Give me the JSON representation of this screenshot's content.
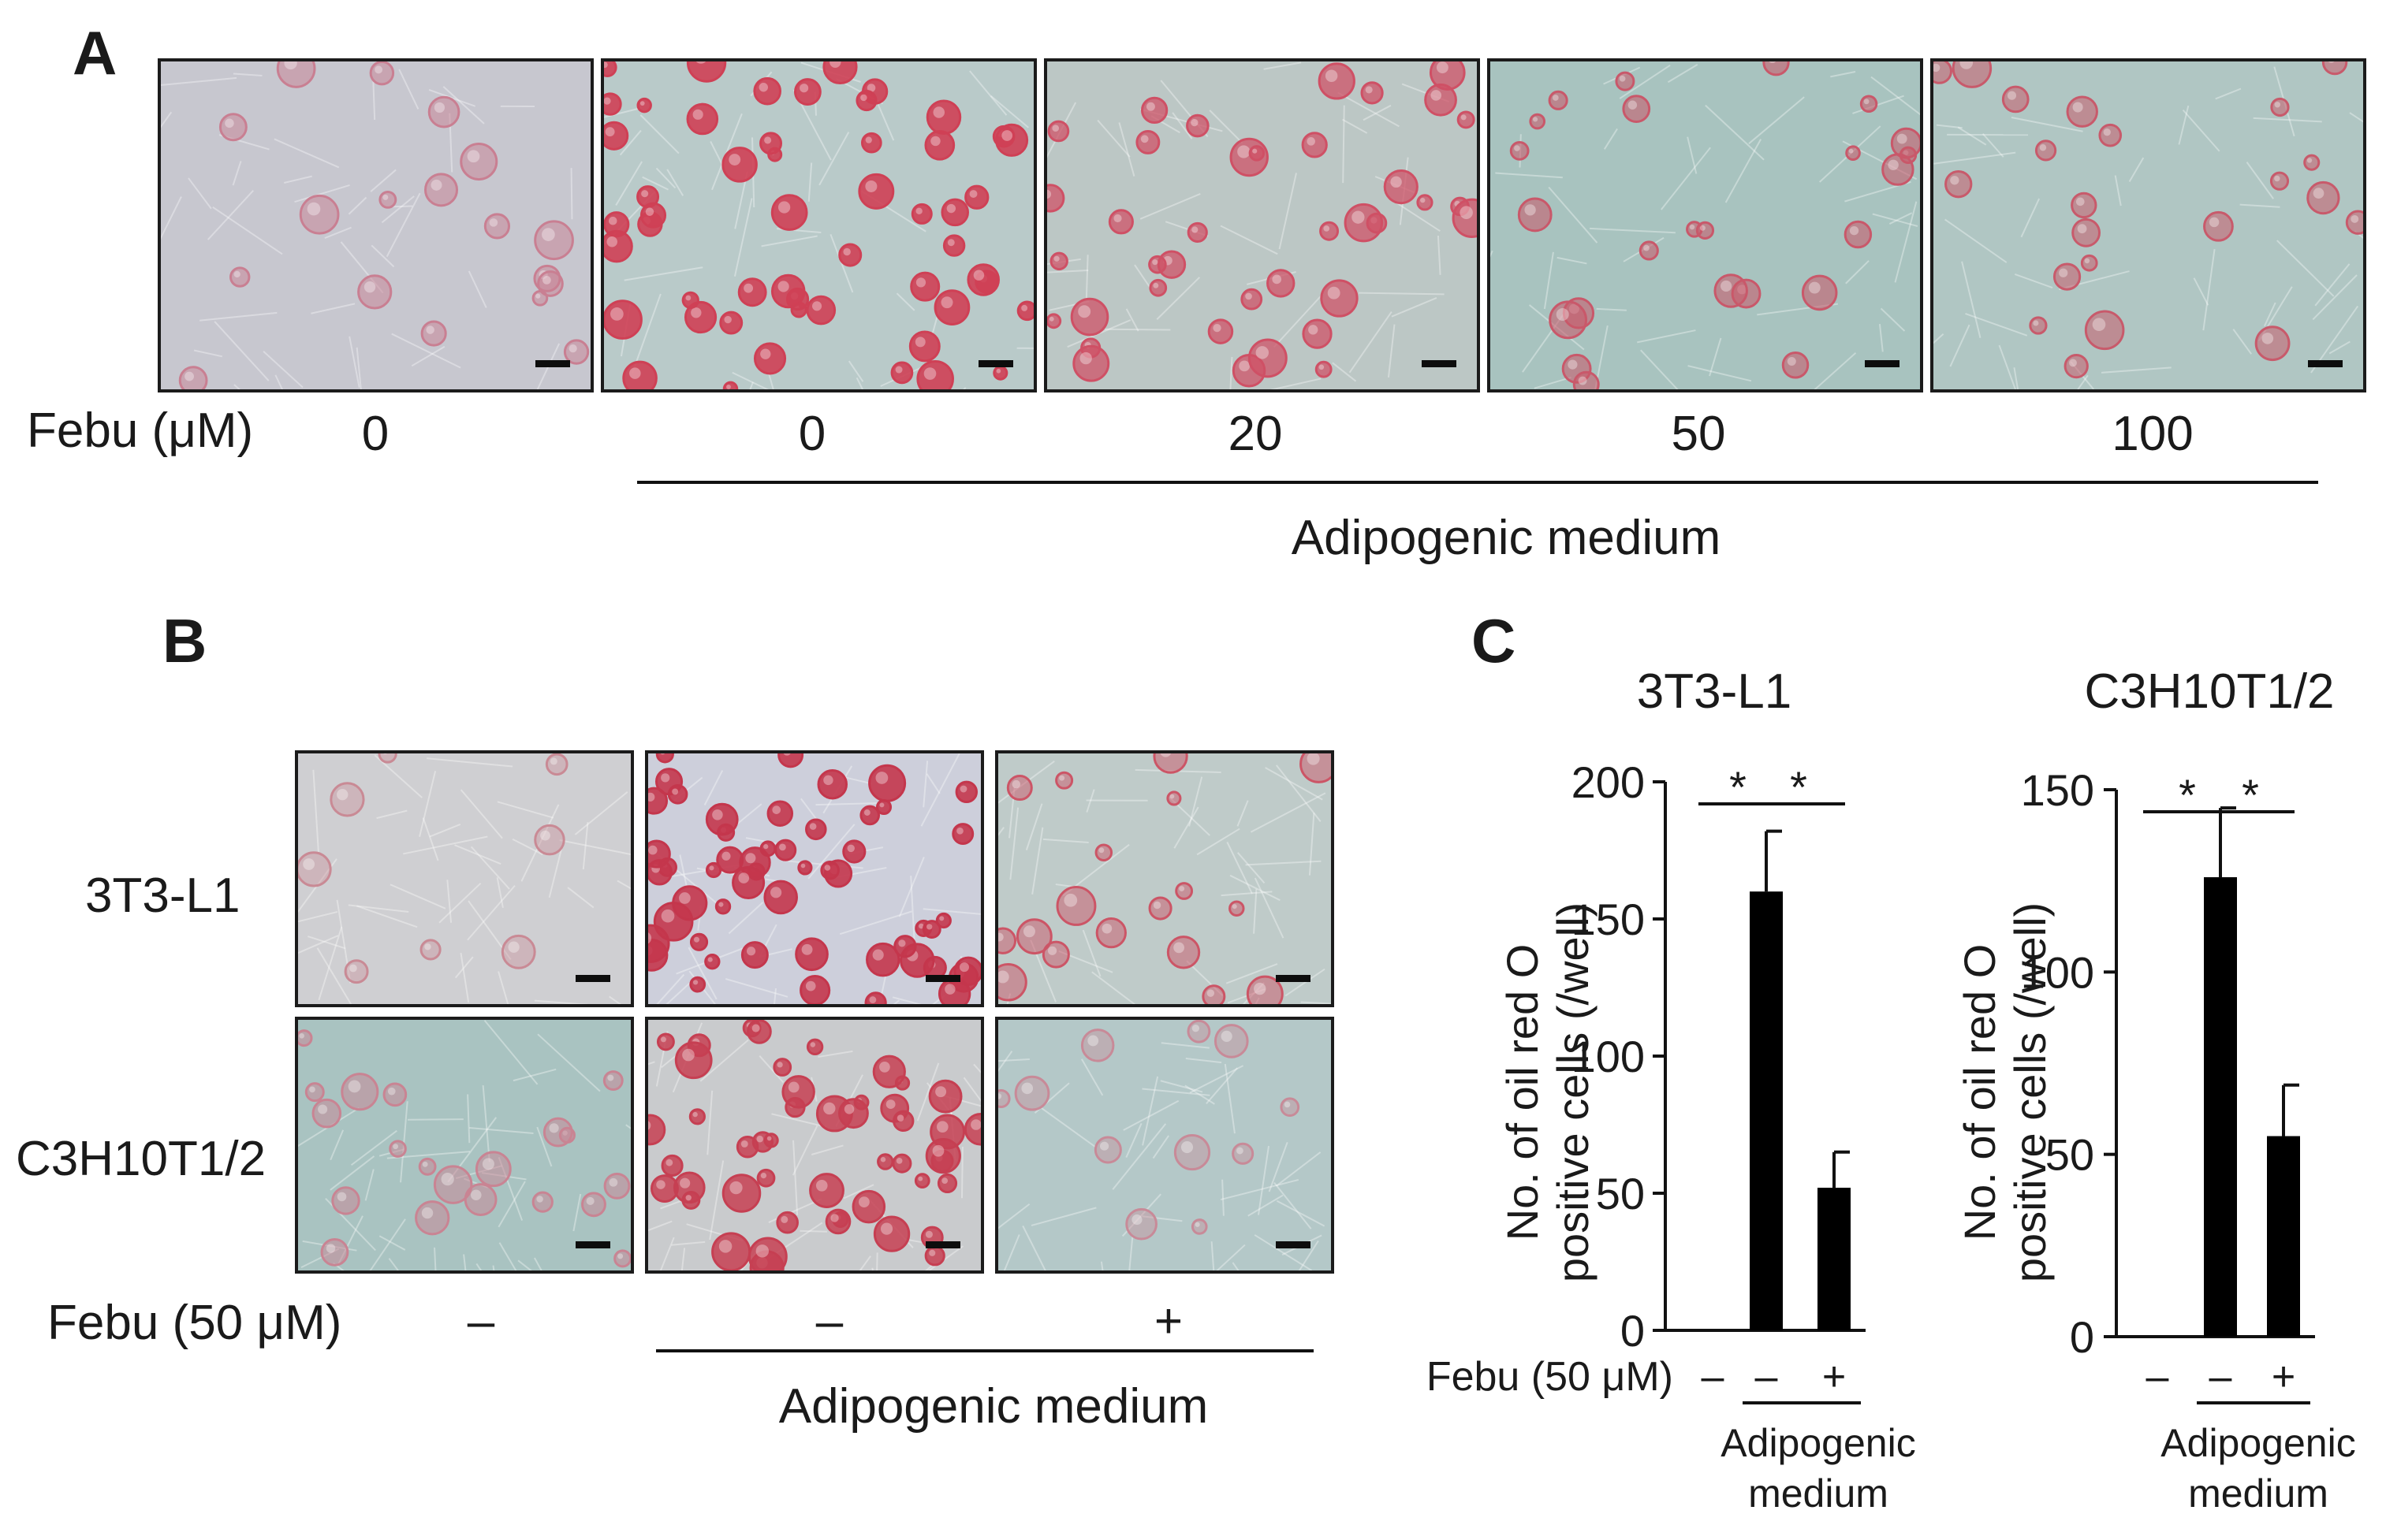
{
  "panel_a": {
    "letter": "A",
    "row_label": "Febu (μM)",
    "doses": [
      "0",
      "0",
      "20",
      "50",
      "100"
    ],
    "medium_label": "Adipogenic medium",
    "images": [
      {
        "bg": "#c7c7cf",
        "stain": "#c97f92",
        "density": 0.25
      },
      {
        "bg": "#b9cac9",
        "stain": "#cf4055",
        "density": 1.0
      },
      {
        "bg": "#bcc7c5",
        "stain": "#cf5065",
        "density": 0.7
      },
      {
        "bg": "#a8c3bf",
        "stain": "#c9586a",
        "density": 0.4
      },
      {
        "bg": "#b0c6c3",
        "stain": "#c85a6b",
        "density": 0.35
      }
    ]
  },
  "panel_b": {
    "letter": "B",
    "row_labels": [
      "3T3-L1",
      "C3H10T1/2"
    ],
    "treatment_label": "Febu (50 μM)",
    "treatments": [
      "–",
      "–",
      "+"
    ],
    "medium_label": "Adipogenic medium",
    "images": [
      [
        {
          "bg": "#cfcfd2",
          "stain": "#c98a95",
          "density": 0.05
        },
        {
          "bg": "#cdcfdb",
          "stain": "#c4364c",
          "density": 1.0
        },
        {
          "bg": "#bfcbc9",
          "stain": "#cc5566",
          "density": 0.25
        }
      ],
      [
        {
          "bg": "#a9c3c1",
          "stain": "#c98493",
          "density": 0.3
        },
        {
          "bg": "#c9cbcd",
          "stain": "#c63f52",
          "density": 0.9
        },
        {
          "bg": "#b4c8c8",
          "stain": "#c88a98",
          "density": 0.1
        }
      ]
    ]
  },
  "panel_c": {
    "letter": "C",
    "ylabel_line1": "No. of oil red O",
    "ylabel_line2": "positive cells (/well)",
    "treatment_label": "Febu (50 μM)",
    "treatments": [
      "–",
      "–",
      "+"
    ],
    "medium_line1": "Adipogenic",
    "medium_line2": "medium",
    "significance_mark": "*"
  },
  "chart_data": [
    {
      "type": "bar",
      "title": "3T3-L1",
      "categories": [
        "Febu –",
        "Adipogenic medium, Febu –",
        "Adipogenic medium, Febu +"
      ],
      "values": [
        0,
        160,
        52
      ],
      "errors": [
        0,
        22,
        13
      ],
      "ylim": [
        0,
        200
      ],
      "yticks": [
        0,
        50,
        100,
        150,
        200
      ],
      "ylabel": "No. of oil red O positive cells (/well)",
      "significance": [
        [
          0,
          1,
          "*"
        ],
        [
          1,
          2,
          "*"
        ]
      ],
      "bar_color": "#000000"
    },
    {
      "type": "bar",
      "title": "C3H10T1/2",
      "categories": [
        "Febu –",
        "Adipogenic medium, Febu –",
        "Adipogenic medium, Febu +"
      ],
      "values": [
        0,
        126,
        55
      ],
      "errors": [
        0,
        19,
        14
      ],
      "ylim": [
        0,
        150
      ],
      "yticks": [
        0,
        50,
        100,
        150
      ],
      "ylabel": "No. of oil red O positive cells (/well)",
      "significance": [
        [
          0,
          1,
          "*"
        ],
        [
          1,
          2,
          "*"
        ]
      ],
      "bar_color": "#000000"
    }
  ]
}
